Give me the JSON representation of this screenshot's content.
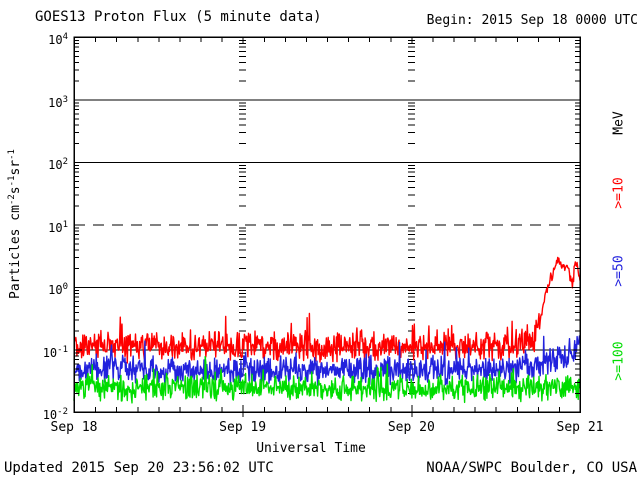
{
  "header": {
    "title": "GOES13 Proton Flux (5 minute data)",
    "begin_label": "Begin: 2015 Sep 18 0000 UTC"
  },
  "footer": {
    "updated": "Updated 2015 Sep 20 23:56:02 UTC",
    "source": "NOAA/SWPC Boulder, CO USA"
  },
  "axes": {
    "xlabel": "Universal Time",
    "ylabel_parts": [
      "Particles cm",
      "-2",
      "s",
      "-1",
      "sr",
      "-1"
    ]
  },
  "legend": {
    "unit_label": "MeV",
    "unit_color": "#000000",
    "entries": [
      {
        "label": ">=10",
        "color": "#ff0000"
      },
      {
        "label": ">=50",
        "color": "#2222dd"
      },
      {
        "label": ">=100",
        "color": "#00dd00"
      }
    ]
  },
  "chart_data": {
    "type": "line",
    "title": "GOES13 Proton Flux (5 minute data)",
    "xlabel": "Universal Time",
    "ylabel": "Particles cm-2 s-1 sr-1",
    "x_start_label": "2015 Sep 18 0000 UTC",
    "x_total_hours": 72,
    "x_day_tick_hours": [
      0,
      24,
      48,
      72
    ],
    "x_day_labels": [
      "Sep 18",
      "Sep 19",
      "Sep 20",
      "Sep 21"
    ],
    "x_minor_tick_hours": 3,
    "y_log_range": [
      -2,
      4
    ],
    "y_tick_exponents": [
      4,
      3,
      2,
      1,
      0,
      -1,
      -2
    ],
    "grid_solid_at_log": [
      3,
      2,
      0,
      -1
    ],
    "grid_dashed_at_log": [
      1
    ],
    "interior_day_gridline_hours": [
      24,
      48
    ],
    "sample_minutes": 5,
    "legend_position": "right",
    "series": [
      {
        "name": ">=10 MeV",
        "color": "#ff0000",
        "seed": 41,
        "noise_dec": 0.28,
        "event_noise_dec": 0.11,
        "mean_log10_points": [
          [
            0,
            -0.96
          ],
          [
            4,
            -0.94
          ],
          [
            8,
            -0.96
          ],
          [
            12,
            -0.93
          ],
          [
            16,
            -0.96
          ],
          [
            20,
            -0.94
          ],
          [
            24,
            -0.96
          ],
          [
            28,
            -0.94
          ],
          [
            32,
            -0.93
          ],
          [
            36,
            -0.96
          ],
          [
            40,
            -0.94
          ],
          [
            44,
            -0.95
          ],
          [
            48,
            -0.96
          ],
          [
            52,
            -0.95
          ],
          [
            56,
            -0.94
          ],
          [
            60,
            -0.95
          ],
          [
            63,
            -0.92
          ],
          [
            65.5,
            -0.85
          ],
          [
            66.3,
            -0.6
          ],
          [
            66.8,
            -0.3
          ],
          [
            67.2,
            -0.05
          ],
          [
            67.6,
            0.08
          ],
          [
            68.1,
            0.18
          ],
          [
            68.5,
            0.42
          ],
          [
            69,
            0.4
          ],
          [
            69.6,
            0.34
          ],
          [
            70.1,
            0.36
          ],
          [
            70.6,
            0.18
          ],
          [
            70.9,
            0.04
          ],
          [
            71.3,
            0.34
          ],
          [
            71.7,
            0.28
          ],
          [
            72,
            0.1
          ]
        ]
      },
      {
        "name": ">=50 MeV",
        "color": "#2222dd",
        "seed": 97,
        "noise_dec": 0.26,
        "mean_log10_points": [
          [
            0,
            -1.34
          ],
          [
            8,
            -1.32
          ],
          [
            16,
            -1.34
          ],
          [
            24,
            -1.33
          ],
          [
            32,
            -1.34
          ],
          [
            40,
            -1.32
          ],
          [
            48,
            -1.34
          ],
          [
            56,
            -1.33
          ],
          [
            62,
            -1.32
          ],
          [
            66,
            -1.28
          ],
          [
            68,
            -1.18
          ],
          [
            70,
            -1.1
          ],
          [
            71,
            -1.05
          ],
          [
            72,
            -1.02
          ]
        ]
      },
      {
        "name": ">=100 MeV",
        "color": "#00dd00",
        "seed": 7,
        "noise_dec": 0.24,
        "mean_log10_points": [
          [
            0,
            -1.6
          ],
          [
            8,
            -1.63
          ],
          [
            16,
            -1.6
          ],
          [
            24,
            -1.62
          ],
          [
            32,
            -1.6
          ],
          [
            40,
            -1.63
          ],
          [
            48,
            -1.6
          ],
          [
            56,
            -1.62
          ],
          [
            64,
            -1.6
          ],
          [
            72,
            -1.62
          ]
        ]
      }
    ]
  }
}
